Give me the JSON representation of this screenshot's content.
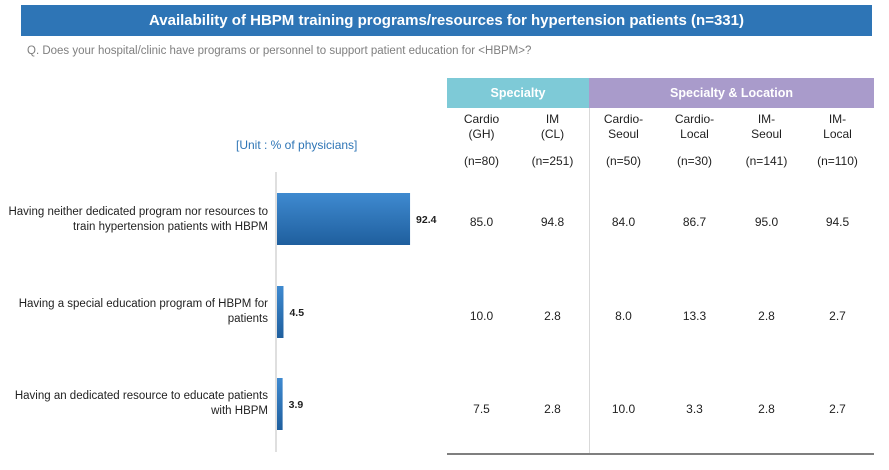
{
  "title": "Availability of HBPM training programs/resources for hypertension patients (n=331)",
  "question": "Q. Does your hospital/clinic have programs or personnel to support patient education for <HBPM>?",
  "unit": "[Unit : % of physicians]",
  "groups": {
    "specialty": "Specialty",
    "location": "Specialty & Location"
  },
  "columns": [
    {
      "line1": "Cardio",
      "line2": "(GH)",
      "n": "(n=80)"
    },
    {
      "line1": "IM",
      "line2": "(CL)",
      "n": "(n=251)"
    },
    {
      "line1": "Cardio-",
      "line2": "Seoul",
      "n": "(n=50)"
    },
    {
      "line1": "Cardio-",
      "line2": "Local",
      "n": "(n=30)"
    },
    {
      "line1": "IM-",
      "line2": "Seoul",
      "n": "(n=141)"
    },
    {
      "line1": "IM-",
      "line2": "Local",
      "n": "(n=110)"
    }
  ],
  "chart_data": {
    "type": "bar",
    "orientation": "horizontal",
    "categories": [
      "Having neither dedicated program nor resources to train hypertension patients with HBPM",
      "Having a special education program of HBPM for patients",
      "Having an dedicated resource to educate patients with HBPM"
    ],
    "category_lines": [
      [
        "Having neither dedicated program nor resources to",
        "train hypertension patients with HBPM"
      ],
      [
        "Having a special education program of HBPM for",
        "patients"
      ],
      [
        "Having an dedicated resource to educate patients",
        "with HBPM"
      ]
    ],
    "values": [
      92.4,
      4.5,
      3.9
    ],
    "value_labels": [
      "92.4",
      "4.5",
      "3.9"
    ],
    "xlim": [
      0,
      100
    ],
    "bar_color": "#2e75b6",
    "table": [
      [
        "85.0",
        "94.8",
        "84.0",
        "86.7",
        "95.0",
        "94.5"
      ],
      [
        "10.0",
        "2.8",
        "8.0",
        "13.3",
        "2.8",
        "2.7"
      ],
      [
        "7.5",
        "2.8",
        "10.0",
        "3.3",
        "2.8",
        "2.7"
      ]
    ]
  }
}
